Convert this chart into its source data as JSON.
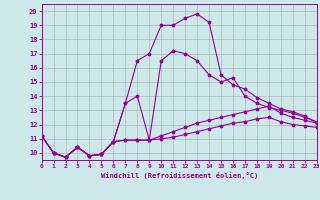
{
  "title": "",
  "xlabel": "Windchill (Refroidissement éolien,°C)",
  "background_color": "#cce8e8",
  "line_color": "#990099",
  "grid_color": "#aabbbb",
  "xlim": [
    0,
    23
  ],
  "ylim": [
    9.5,
    20.5
  ],
  "xticks": [
    0,
    1,
    2,
    3,
    4,
    5,
    6,
    7,
    8,
    9,
    10,
    11,
    12,
    13,
    14,
    15,
    16,
    17,
    18,
    19,
    20,
    21,
    22,
    23
  ],
  "yticks": [
    10,
    11,
    12,
    13,
    14,
    15,
    16,
    17,
    18,
    19,
    20
  ],
  "lines": [
    {
      "x": [
        0,
        1,
        2,
        3,
        4,
        5,
        6,
        7,
        8,
        9,
        10,
        11,
        12,
        13,
        14,
        15,
        16,
        17,
        18,
        19,
        20,
        21,
        22,
        23
      ],
      "y": [
        11.2,
        10.0,
        9.7,
        10.4,
        9.8,
        9.9,
        10.8,
        10.9,
        10.9,
        10.9,
        11.0,
        11.1,
        11.3,
        11.5,
        11.7,
        11.9,
        12.1,
        12.2,
        12.4,
        12.5,
        12.2,
        12.0,
        11.9,
        11.8
      ]
    },
    {
      "x": [
        0,
        1,
        2,
        3,
        4,
        5,
        6,
        7,
        8,
        9,
        10,
        11,
        12,
        13,
        14,
        15,
        16,
        17,
        18,
        19,
        20,
        21,
        22,
        23
      ],
      "y": [
        11.2,
        10.0,
        9.7,
        10.4,
        9.8,
        9.9,
        10.8,
        10.9,
        10.9,
        10.9,
        11.2,
        11.5,
        11.8,
        12.1,
        12.3,
        12.5,
        12.7,
        12.9,
        13.1,
        13.3,
        12.8,
        12.5,
        12.3,
        12.1
      ]
    },
    {
      "x": [
        0,
        1,
        2,
        3,
        4,
        5,
        6,
        7,
        8,
        9,
        10,
        11,
        12,
        13,
        14,
        15,
        16,
        17,
        18,
        19,
        20,
        21,
        22,
        23
      ],
      "y": [
        11.2,
        10.0,
        9.7,
        10.4,
        9.8,
        9.9,
        10.8,
        13.5,
        14.0,
        10.9,
        16.5,
        17.2,
        17.0,
        16.5,
        15.5,
        15.0,
        15.3,
        14.0,
        13.5,
        13.2,
        13.0,
        12.8,
        12.5,
        12.2
      ]
    },
    {
      "x": [
        0,
        1,
        2,
        3,
        4,
        5,
        6,
        7,
        8,
        9,
        10,
        11,
        12,
        13,
        14,
        15,
        16,
        17,
        18,
        19,
        20,
        21,
        22,
        23
      ],
      "y": [
        11.2,
        10.0,
        9.7,
        10.4,
        9.8,
        9.9,
        10.8,
        13.5,
        16.5,
        17.0,
        19.0,
        19.0,
        19.5,
        19.8,
        19.2,
        15.5,
        14.8,
        14.5,
        13.9,
        13.5,
        13.1,
        12.9,
        12.6,
        12.1
      ]
    }
  ]
}
